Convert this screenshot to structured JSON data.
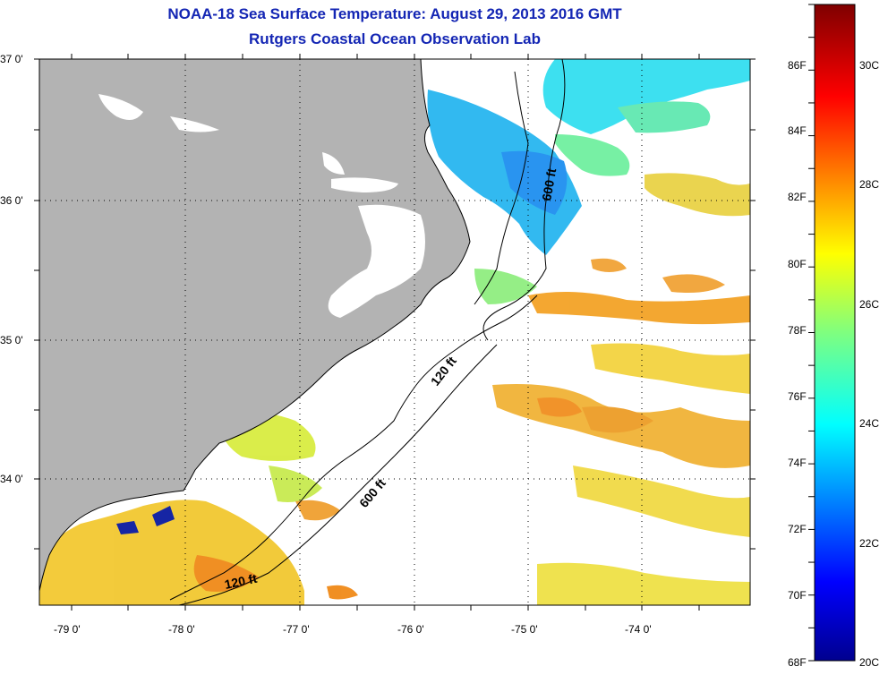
{
  "titles": {
    "line1": "NOAA-18 Sea Surface Temperature:  August 29, 2013 2016 GMT",
    "line2": "Rutgers Coastal Ocean Observation Lab"
  },
  "map": {
    "latitude_labels": [
      "37 0'",
      "36 0'",
      "35 0'",
      "34 0'"
    ],
    "longitude_labels": [
      "-79 0'",
      "-78 0'",
      "-77 0'",
      "-76 0'",
      "-75 0'",
      "-74 0'"
    ],
    "lon_range": [
      -79.3,
      -73.05
    ],
    "lat_range": [
      33.15,
      37.0
    ],
    "contour_labels": [
      {
        "text": "600 ft",
        "near": "north Gulf Stream edge"
      },
      {
        "text": "120 ft",
        "near": "mid shelf"
      },
      {
        "text": "600 ft",
        "near": "mid shelf break"
      },
      {
        "text": "120 ft",
        "near": "southwest shelf"
      }
    ],
    "colors": {
      "land": "#b3b3b3",
      "cloud": "#ffffff",
      "title": "#1426b4"
    }
  },
  "colorbar": {
    "fahrenheit_labels": [
      "86F",
      "84F",
      "82F",
      "80F",
      "78F",
      "76F",
      "74F",
      "72F",
      "70F",
      "68F"
    ],
    "celsius_labels": [
      "30C",
      "28C",
      "26C",
      "24C",
      "22C",
      "20C"
    ],
    "range_f": [
      68,
      88
    ],
    "colormap": "jet"
  }
}
